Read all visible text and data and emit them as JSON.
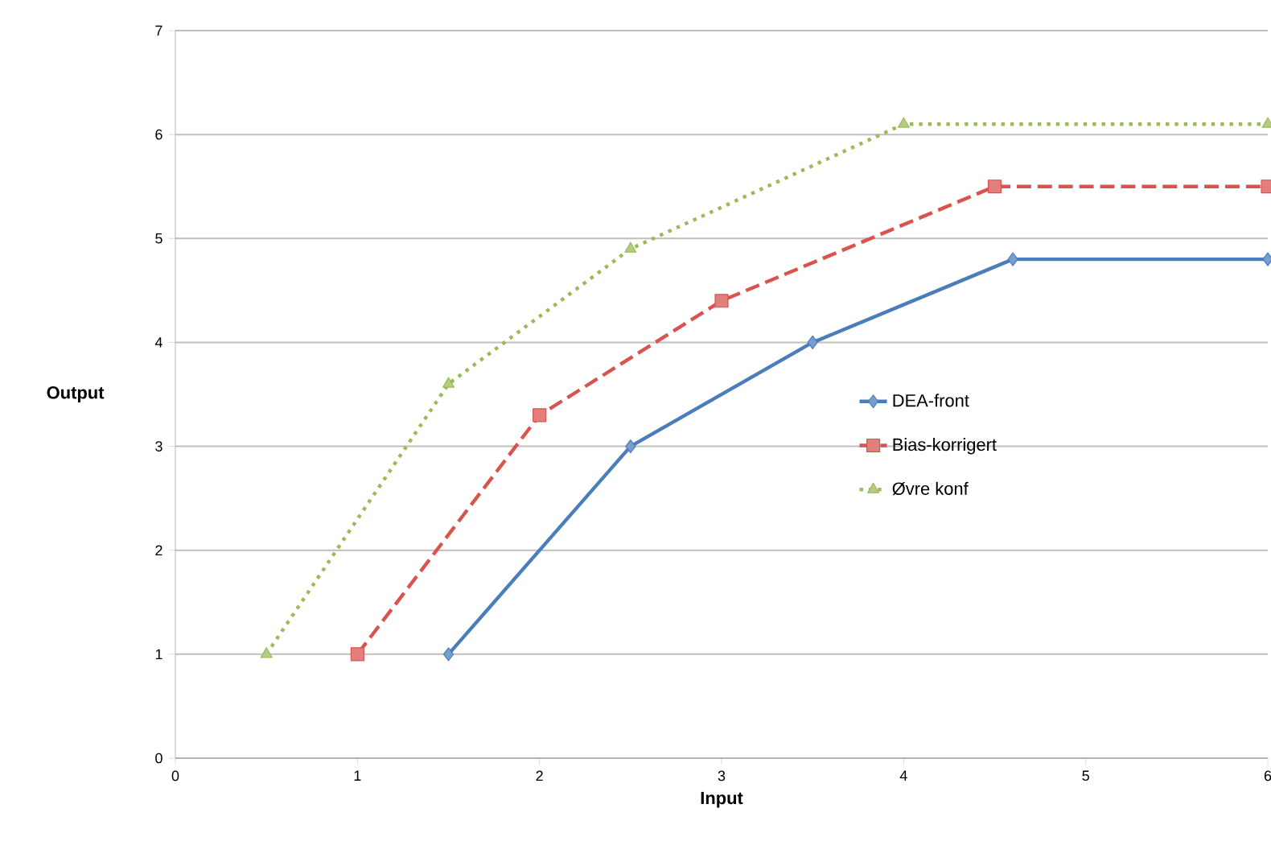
{
  "chart_data": {
    "type": "line",
    "xlabel": "Input",
    "ylabel": "Output",
    "xlim": [
      0,
      6
    ],
    "ylim": [
      0,
      7
    ],
    "xticks": [
      0,
      1,
      2,
      3,
      4,
      5,
      6
    ],
    "yticks": [
      0,
      1,
      2,
      3,
      4,
      5,
      6,
      7
    ],
    "grid": "y",
    "legend": "right",
    "series": [
      {
        "name": "DEA-front",
        "color": "#4a7ebb",
        "marker": "diamond",
        "line_style": "solid",
        "x": [
          1.5,
          2.5,
          3.5,
          4.6,
          6
        ],
        "values": [
          1,
          3,
          4,
          4.8,
          4.8
        ]
      },
      {
        "name": "Bias-korrigert",
        "color": "#d9534f",
        "marker": "square",
        "line_style": "dashed",
        "x": [
          1,
          2,
          3,
          4.5,
          6
        ],
        "values": [
          1,
          3.3,
          4.4,
          5.5,
          5.5
        ]
      },
      {
        "name": "Øvre konf",
        "color": "#9bbb59",
        "marker": "triangle",
        "line_style": "dotted",
        "x": [
          0.5,
          1.5,
          2.5,
          4,
          6
        ],
        "values": [
          1,
          3.6,
          4.9,
          6.1,
          6.1
        ]
      }
    ]
  }
}
